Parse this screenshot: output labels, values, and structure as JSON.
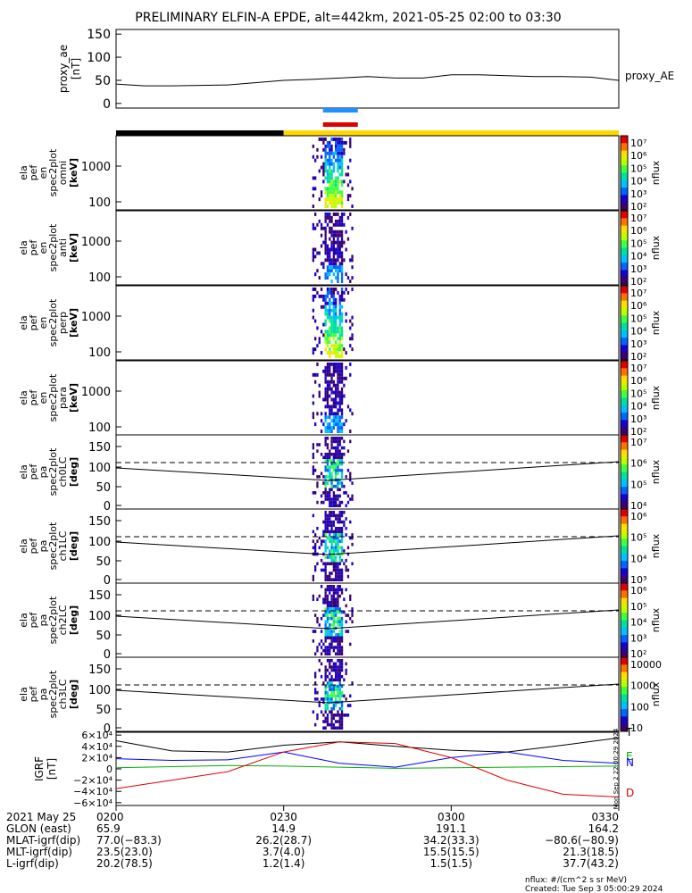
{
  "title": "PRELIMINARY ELFIN-A EPDE, alt=442km, 2021-05-25 02:00 to 03:30",
  "proxy_panel": {
    "ylabel": "proxy_ae",
    "units": "[nT]",
    "legend": "proxy_AE",
    "yticks": [
      "150",
      "100",
      "50",
      "0"
    ],
    "ylim": [
      -10,
      160
    ]
  },
  "status_bars": {
    "blue_label": "",
    "red_label": "",
    "colors": {
      "blue": "#1e90ff",
      "red": "#e00000",
      "black": "#000000",
      "yellow": "#ffd700"
    }
  },
  "panels": [
    {
      "label": [
        "ela",
        "pef",
        "en",
        "spec2plot",
        "omni"
      ],
      "units": "[keV]",
      "yticks": [
        "1000",
        "100"
      ],
      "type": "energy",
      "colorbar": [
        "10⁷",
        "10⁶",
        "10⁵",
        "10⁴",
        "10³",
        "10²"
      ],
      "cb_label": "nflux"
    },
    {
      "label": [
        "ela",
        "pef",
        "en",
        "spec2plot",
        "anti"
      ],
      "units": "[keV]",
      "yticks": [
        "1000",
        "100"
      ],
      "type": "energy",
      "colorbar": [
        "10⁷",
        "10⁶",
        "10⁵",
        "10⁴",
        "10³",
        "10²"
      ],
      "cb_label": "nflux"
    },
    {
      "label": [
        "ela",
        "pef",
        "en",
        "spec2plot",
        "perp"
      ],
      "units": "[keV]",
      "yticks": [
        "1000",
        "100"
      ],
      "type": "energy",
      "colorbar": [
        "10⁷",
        "10⁶",
        "10⁵",
        "10⁴",
        "10³",
        "10²"
      ],
      "cb_label": "nflux"
    },
    {
      "label": [
        "ela",
        "pef",
        "en",
        "spec2plot",
        "para"
      ],
      "units": "[keV]",
      "yticks": [
        "1000",
        "100"
      ],
      "type": "energy",
      "colorbar": [
        "10⁷",
        "10⁶",
        "10⁵",
        "10⁴",
        "10³",
        "10²"
      ],
      "cb_label": "nflux"
    },
    {
      "label": [
        "ela",
        "pef",
        "pa",
        "spec2plot",
        "ch0LC"
      ],
      "units": "[deg]",
      "yticks": [
        "150",
        "100",
        "50",
        "0"
      ],
      "type": "pitch",
      "colorbar": [
        "10⁷",
        "10⁶",
        "10⁵",
        "10⁴"
      ],
      "cb_label": "nflux"
    },
    {
      "label": [
        "ela",
        "pef",
        "pa",
        "spec2plot",
        "ch1LC"
      ],
      "units": "[deg]",
      "yticks": [
        "150",
        "100",
        "50",
        "0"
      ],
      "type": "pitch",
      "colorbar": [
        "10⁶",
        "10⁵",
        "10⁴",
        "10³"
      ],
      "cb_label": "nflux"
    },
    {
      "label": [
        "ela",
        "pef",
        "pa",
        "spec2plot",
        "ch2LC"
      ],
      "units": "[deg]",
      "yticks": [
        "150",
        "100",
        "50",
        "0"
      ],
      "type": "pitch",
      "colorbar": [
        "10⁶",
        "10⁵",
        "10⁴",
        "10³",
        "10²"
      ],
      "cb_label": "nflux"
    },
    {
      "label": [
        "ela",
        "pef",
        "pa",
        "spec2plot",
        "ch3LC"
      ],
      "units": "[deg]",
      "yticks": [
        "150",
        "100",
        "50",
        "0"
      ],
      "type": "pitch",
      "colorbar": [
        "10000",
        "1000",
        "100",
        "10"
      ],
      "cb_label": "nflux"
    }
  ],
  "igrf_panel": {
    "ylabel": "IGRF",
    "units": "[nT]",
    "yticks": [
      "6×10⁴",
      "4×10⁴",
      "2×10⁴",
      "0",
      "−2×10⁴",
      "−4×10⁴",
      "−6×10⁴"
    ],
    "legend": [
      {
        "name": "T",
        "color": "#000000"
      },
      {
        "name": "E",
        "color": "#00b000"
      },
      {
        "name": "N",
        "color": "#0000ff"
      },
      {
        "name": "D",
        "color": "#e00000"
      }
    ],
    "side_text": "Mon Sep 2 22:00:29 2024"
  },
  "time_axis": {
    "row_labels": [
      "2021 May 25",
      "GLON (east)",
      "MLAT-igrf(dip)",
      "MLT-igrf(dip)",
      "L-igrf(dip)"
    ],
    "columns": [
      {
        "time": "0200",
        "glon": "65.9",
        "mlat": "77.0(−83.3)",
        "mlt": "23.5(23.0)",
        "l": "20.2(78.5)"
      },
      {
        "time": "0230",
        "glon": "14.9",
        "mlat": "26.2(28.7)",
        "mlt": "3.7(4.0)",
        "l": "1.2(1.4)"
      },
      {
        "time": "0300",
        "glon": "191.1",
        "mlat": "34.2(33.3)",
        "mlt": "15.5(15.5)",
        "l": "1.5(1.5)"
      },
      {
        "time": "0330",
        "glon": "164.2",
        "mlat": "−80.6(−80.9)",
        "mlt": "21.3(18.5)",
        "l": "37.7(43.2)"
      }
    ]
  },
  "footer": {
    "units_note": "nflux: #/(cm^2 s sr MeV)",
    "created": "Created: Tue Sep  3 05:00:29 2024"
  },
  "chart_data": {
    "type": "heatmap",
    "x_range": [
      "02:00",
      "03:30"
    ],
    "proxy_ae": {
      "x_minutes": [
        0,
        5,
        10,
        20,
        30,
        35,
        40,
        45,
        50,
        55,
        60,
        65,
        70,
        75,
        80,
        85,
        90
      ],
      "values": [
        42,
        38,
        38,
        40,
        50,
        52,
        55,
        58,
        55,
        55,
        62,
        62,
        60,
        58,
        58,
        57,
        50
      ]
    },
    "igrf": {
      "x_minutes": [
        0,
        10,
        20,
        30,
        40,
        50,
        60,
        70,
        80,
        90
      ],
      "T": [
        50000,
        32000,
        30000,
        42000,
        48000,
        40000,
        33000,
        30000,
        42000,
        55000
      ],
      "E": [
        2000,
        4000,
        6000,
        5000,
        3000,
        1000,
        2000,
        3000,
        4000,
        5000
      ],
      "N": [
        18000,
        15000,
        16000,
        30000,
        10000,
        3000,
        20000,
        30000,
        15000,
        10000
      ],
      "D": [
        -35000,
        -20000,
        -5000,
        30000,
        48000,
        45000,
        20000,
        -20000,
        -45000,
        -50000
      ]
    },
    "burst_window_minutes": [
      38,
      42
    ]
  }
}
